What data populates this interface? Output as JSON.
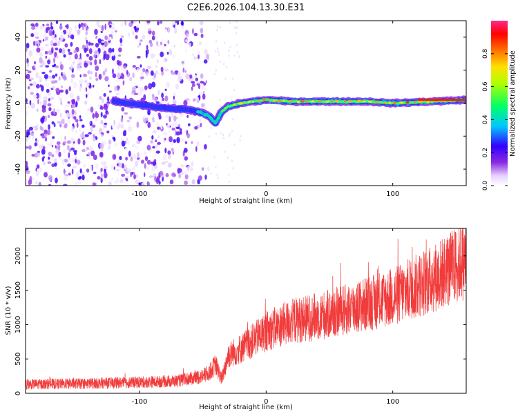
{
  "title": "C2E6.2026.104.13.30.E31",
  "chart_data": [
    {
      "type": "heatmap",
      "xlabel": "Height of straight line (km)",
      "ylabel": "Frequency (Hz)",
      "xlim": [
        -190,
        158
      ],
      "ylim": [
        -50,
        50
      ],
      "x_ticks": [
        -100,
        0,
        100
      ],
      "y_ticks": [
        -40,
        -20,
        0,
        20,
        40
      ],
      "grid": false,
      "colorbar": {
        "label": "Normalized spectral amplitude",
        "range": [
          0,
          1
        ],
        "ticks": [
          0.0,
          0.2,
          0.4,
          0.6,
          0.8
        ],
        "tick_labels": [
          "0.0",
          "0.2",
          "0.4",
          "0.6",
          "0.8"
        ]
      },
      "ridge": {
        "x": [
          -120,
          -100,
          -80,
          -60,
          -50,
          -45,
          -40,
          -35,
          -30,
          -20,
          0,
          20,
          50,
          80,
          100,
          130,
          158
        ],
        "y": [
          1,
          -1,
          -3,
          -4,
          -6,
          -8,
          -12,
          -5,
          -2,
          0,
          2,
          1,
          1,
          1,
          0,
          1,
          2
        ],
        "peak_amplitude": [
          0.25,
          0.25,
          0.3,
          0.3,
          0.4,
          0.4,
          0.45,
          0.5,
          0.6,
          0.7,
          0.8,
          0.8,
          0.85,
          0.85,
          0.85,
          0.9,
          0.9
        ]
      },
      "noise_region": {
        "x_range": [
          -190,
          -45
        ],
        "y_range": [
          -50,
          50
        ],
        "amplitude_range": [
          0.02,
          0.25
        ]
      }
    },
    {
      "type": "line",
      "xlabel": "Height of straight line (km)",
      "ylabel": "SNR (10 * v/v)",
      "xlim": [
        -190,
        158
      ],
      "ylim": [
        0,
        2400
      ],
      "x_ticks": [
        -100,
        0,
        100
      ],
      "y_ticks": [
        0,
        500,
        1000,
        1500,
        2000
      ],
      "grid": false,
      "series": [
        {
          "color": "#f03232",
          "x": [
            -190,
            -150,
            -100,
            -70,
            -50,
            -45,
            -40,
            -35,
            -30,
            -20,
            0,
            20,
            50,
            80,
            100,
            130,
            158
          ],
          "y": [
            130,
            140,
            160,
            180,
            250,
            300,
            420,
            200,
            550,
            650,
            900,
            1050,
            1150,
            1300,
            1400,
            1650,
            1950
          ]
        }
      ]
    }
  ]
}
